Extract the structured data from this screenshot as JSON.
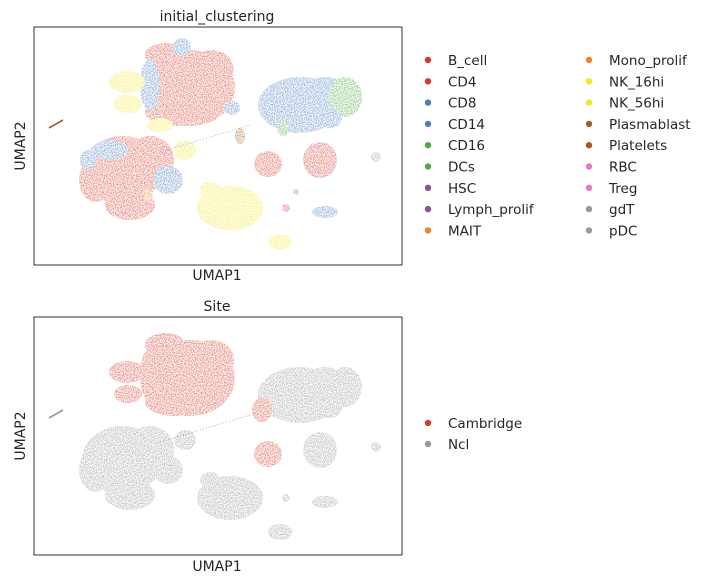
{
  "chart_data": [
    {
      "type": "scatter",
      "title": "initial_clustering",
      "xlabel": "UMAP1",
      "ylabel": "UMAP2",
      "grid": false,
      "ticks": false,
      "legend": {
        "placement": "right",
        "columns": 2,
        "entries": [
          {
            "name": "B_cell",
            "color": "#d73a2c"
          },
          {
            "name": "CD4",
            "color": "#d73a2c"
          },
          {
            "name": "CD8",
            "color": "#4d7fbf"
          },
          {
            "name": "CD14",
            "color": "#4d7fbf"
          },
          {
            "name": "CD16",
            "color": "#55a84a"
          },
          {
            "name": "DCs",
            "color": "#55a84a"
          },
          {
            "name": "HSC",
            "color": "#8a4f9e"
          },
          {
            "name": "Lymph_prolif",
            "color": "#8a4f9e"
          },
          {
            "name": "MAIT",
            "color": "#f28128"
          },
          {
            "name": "Mono_prolif",
            "color": "#f28128"
          },
          {
            "name": "NK_16hi",
            "color": "#f2e829"
          },
          {
            "name": "NK_56hi",
            "color": "#f2e829"
          },
          {
            "name": "Plasmablast",
            "color": "#a45a2a"
          },
          {
            "name": "Platelets",
            "color": "#a45a2a"
          },
          {
            "name": "RBC",
            "color": "#e67bbd"
          },
          {
            "name": "Treg",
            "color": "#e67bbd"
          },
          {
            "name": "gdT",
            "color": "#999999"
          },
          {
            "name": "pDC",
            "color": "#999999"
          }
        ]
      }
    },
    {
      "type": "scatter",
      "title": "Site",
      "xlabel": "UMAP1",
      "ylabel": "UMAP2",
      "grid": false,
      "ticks": false,
      "legend": {
        "placement": "right",
        "columns": 1,
        "entries": [
          {
            "name": "Cambridge",
            "color": "#d73a2c"
          },
          {
            "name": "Ncl",
            "color": "#999999"
          }
        ]
      }
    }
  ]
}
